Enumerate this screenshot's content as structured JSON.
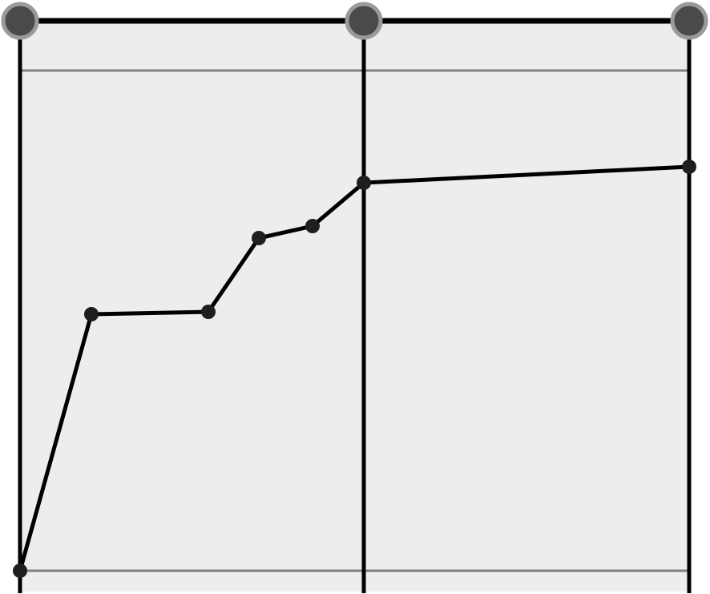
{
  "diagram": {
    "kind": "segmented-curve",
    "description_visible_text": "",
    "colors": {
      "panel_fill": "#ededed",
      "line": "#000000",
      "frame_line": "#808080",
      "point": "#1e1e1e",
      "knot_fill": "#4a4a4a",
      "knot_ring": "#9a9a9a"
    },
    "segments": 2,
    "knots": 3,
    "curve_points": 8
  }
}
